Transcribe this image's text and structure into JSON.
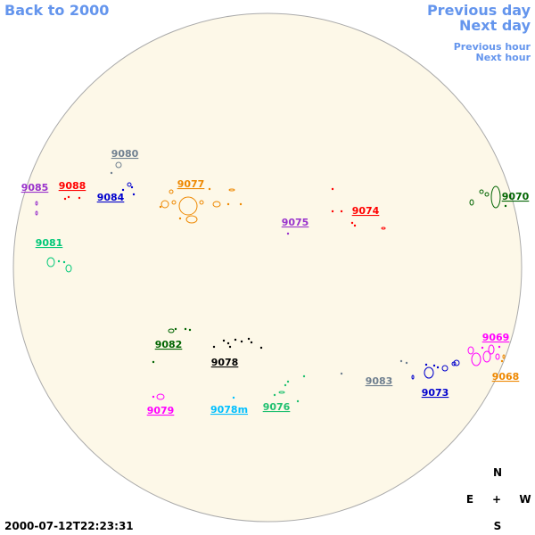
{
  "nav": {
    "back": "Back to 2000",
    "previous_day": "Previous day",
    "next_day": "Next day",
    "previous_hour": "Previous hour",
    "next_hour": "Next hour"
  },
  "regions": [
    {
      "label": "9080",
      "color": "#708090"
    },
    {
      "label": "9085",
      "color": "#9932cc"
    },
    {
      "label": "9088",
      "color": "#ff0000"
    },
    {
      "label": "9084",
      "color": "#0000cd"
    },
    {
      "label": "9077",
      "color": "#ee8800"
    },
    {
      "label": "9075",
      "color": "#9932cc"
    },
    {
      "label": "9074",
      "color": "#ff0000"
    },
    {
      "label": "9070",
      "color": "#006400"
    },
    {
      "label": "9081",
      "color": "#00c878"
    },
    {
      "label": "9082",
      "color": "#006400"
    },
    {
      "label": "9078",
      "color": "#000000"
    },
    {
      "label": "9083",
      "color": "#708090"
    },
    {
      "label": "9073",
      "color": "#0000cd"
    },
    {
      "label": "9069",
      "color": "#ff00ff"
    },
    {
      "label": "9068",
      "color": "#ee8800"
    },
    {
      "label": "9079",
      "color": "#ff00ff"
    },
    {
      "label": "9078m",
      "color": "#00bfff"
    },
    {
      "label": "9076",
      "color": "#20c070"
    }
  ],
  "compass": {
    "north": "N",
    "east": "E",
    "center": "+",
    "west": "W",
    "south": "S"
  },
  "timestamp": "2000-07-12T22:23:31"
}
